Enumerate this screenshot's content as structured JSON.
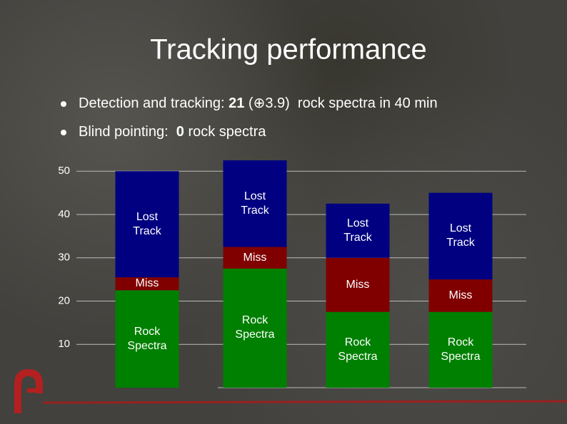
{
  "title": "Tracking performance",
  "bullets": [
    [
      "Detection and tracking: ",
      "21",
      " (⊕3.9)  rock spectra in 40 min"
    ],
    [
      "Blind pointing:  ",
      "0",
      " rock spectra"
    ]
  ],
  "chart_data": {
    "type": "stacked-bar",
    "categories": [
      null,
      null,
      null,
      null
    ],
    "series": [
      {
        "name": "Rock Spectra",
        "color": "#008000",
        "values": [
          22.5,
          27.5,
          17.5,
          17.5
        ]
      },
      {
        "name": "Miss",
        "color": "#800000",
        "values": [
          3,
          5,
          12.5,
          7.5
        ]
      },
      {
        "name": "Lost Track",
        "color": "#000080",
        "values": [
          24.5,
          20,
          12.5,
          20
        ]
      }
    ],
    "ylim": [
      0,
      53
    ],
    "yticks": [
      10,
      20,
      30,
      40,
      50
    ],
    "grid": true
  }
}
